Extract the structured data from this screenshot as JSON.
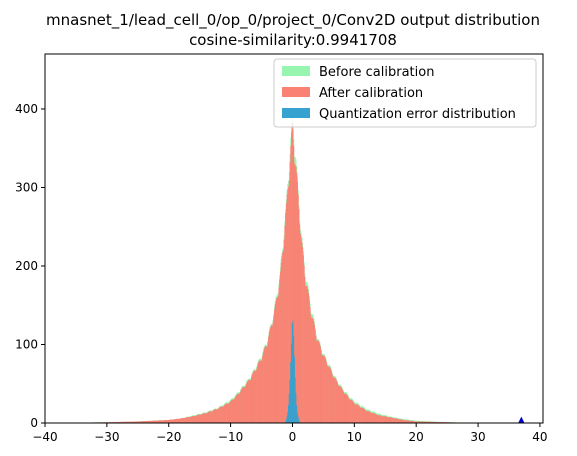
{
  "chart_data": {
    "type": "bar",
    "title": "mnasnet_1/lead_cell_0/op_0/project_0/Conv2D output distribution",
    "subtitle": "cosine-similarity:0.9941708",
    "xlabel": "",
    "ylabel": "",
    "xlim": [
      -40,
      40.5
    ],
    "ylim": [
      0,
      470
    ],
    "xticks": [
      -40,
      -30,
      -20,
      -10,
      0,
      10,
      20,
      30,
      40
    ],
    "yticks": [
      0,
      100,
      200,
      300,
      400
    ],
    "grid": false,
    "legend_position": "upper-right",
    "series": [
      {
        "name": "Before calibration",
        "color": "#98f5b0",
        "points": [
          [
            -38,
            0
          ],
          [
            -30,
            1
          ],
          [
            -25,
            2
          ],
          [
            -20,
            4
          ],
          [
            -18,
            6
          ],
          [
            -16,
            10
          ],
          [
            -14,
            14
          ],
          [
            -12,
            20
          ],
          [
            -10,
            30
          ],
          [
            -9,
            38
          ],
          [
            -8,
            48
          ],
          [
            -7,
            58
          ],
          [
            -6,
            72
          ],
          [
            -5,
            88
          ],
          [
            -4,
            110
          ],
          [
            -3,
            145
          ],
          [
            -2,
            195
          ],
          [
            -1.5,
            240
          ],
          [
            -1,
            285
          ],
          [
            -0.5,
            345
          ],
          [
            0,
            398
          ],
          [
            0.5,
            350
          ],
          [
            1,
            290
          ],
          [
            1.5,
            240
          ],
          [
            2,
            200
          ],
          [
            3,
            150
          ],
          [
            4,
            112
          ],
          [
            5,
            90
          ],
          [
            6,
            74
          ],
          [
            7,
            58
          ],
          [
            8,
            46
          ],
          [
            9,
            36
          ],
          [
            10,
            28
          ],
          [
            12,
            18
          ],
          [
            14,
            12
          ],
          [
            16,
            8
          ],
          [
            18,
            5
          ],
          [
            20,
            3
          ],
          [
            25,
            1
          ],
          [
            30,
            0
          ]
        ]
      },
      {
        "name": "After calibration",
        "color": "#f98274",
        "points": [
          [
            -38,
            0
          ],
          [
            -30,
            1
          ],
          [
            -25,
            2
          ],
          [
            -20,
            4
          ],
          [
            -18,
            6
          ],
          [
            -16,
            9
          ],
          [
            -14,
            13
          ],
          [
            -12,
            19
          ],
          [
            -10,
            28
          ],
          [
            -9,
            36
          ],
          [
            -8,
            46
          ],
          [
            -7,
            56
          ],
          [
            -6,
            70
          ],
          [
            -5,
            85
          ],
          [
            -4,
            108
          ],
          [
            -3,
            142
          ],
          [
            -2,
            190
          ],
          [
            -1.5,
            235
          ],
          [
            -1,
            280
          ],
          [
            -0.5,
            335
          ],
          [
            0,
            388
          ],
          [
            0.5,
            340
          ],
          [
            1,
            285
          ],
          [
            1.5,
            235
          ],
          [
            2,
            195
          ],
          [
            3,
            145
          ],
          [
            4,
            110
          ],
          [
            5,
            88
          ],
          [
            6,
            72
          ],
          [
            7,
            56
          ],
          [
            8,
            44
          ],
          [
            9,
            34
          ],
          [
            10,
            26
          ],
          [
            12,
            16
          ],
          [
            14,
            10
          ],
          [
            16,
            7
          ],
          [
            18,
            4
          ],
          [
            20,
            2
          ],
          [
            25,
            1
          ],
          [
            30,
            0
          ]
        ]
      },
      {
        "name": "Quantization error distribution",
        "color": "#36a2cf",
        "points": [
          [
            -1.2,
            0
          ],
          [
            -1,
            5
          ],
          [
            -0.8,
            12
          ],
          [
            -0.6,
            28
          ],
          [
            -0.4,
            60
          ],
          [
            -0.2,
            105
          ],
          [
            0,
            142
          ],
          [
            0.2,
            108
          ],
          [
            0.4,
            62
          ],
          [
            0.6,
            30
          ],
          [
            0.8,
            12
          ],
          [
            1,
            5
          ],
          [
            1.2,
            0
          ]
        ]
      }
    ],
    "annotations": [
      {
        "type": "marker",
        "x": 37,
        "y": 3,
        "color": "#0000cc"
      }
    ]
  }
}
